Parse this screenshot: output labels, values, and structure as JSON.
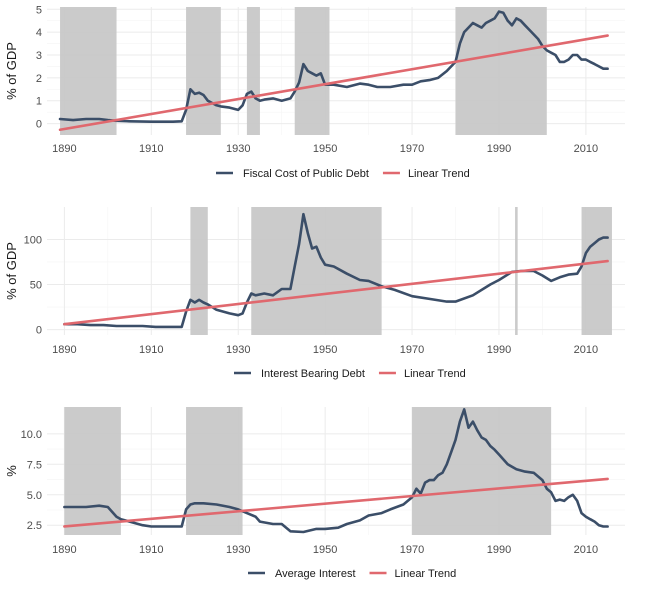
{
  "colors": {
    "series": "#3b4e68",
    "trend": "#e0686e",
    "shade": "#c8c8c8"
  },
  "chart_data": [
    {
      "type": "line",
      "name": "fiscal-cost",
      "ylabel": "% of GDP",
      "xlim": [
        1886,
        2019
      ],
      "ylim": [
        -0.5,
        5.1
      ],
      "xticks": [
        1890,
        1910,
        1930,
        1950,
        1970,
        1990,
        2010
      ],
      "yticks": [
        0,
        1,
        2,
        3,
        4,
        5
      ],
      "ytick_labels": [
        "0",
        "1",
        "2",
        "3",
        "4",
        "5"
      ],
      "shaded_periods": [
        [
          1889,
          1902
        ],
        [
          1918,
          1926
        ],
        [
          1932,
          1935
        ],
        [
          1943,
          1951
        ],
        [
          1980,
          2001
        ]
      ],
      "series": {
        "name": "Fiscal Cost of Public Debt",
        "x": [
          1889,
          1892,
          1895,
          1898,
          1900,
          1902,
          1905,
          1910,
          1915,
          1917,
          1918,
          1919,
          1920,
          1921,
          1922,
          1923,
          1924,
          1925,
          1926,
          1928,
          1930,
          1931,
          1932,
          1933,
          1934,
          1935,
          1936,
          1938,
          1940,
          1942,
          1943,
          1944,
          1945,
          1946,
          1947,
          1948,
          1949,
          1950,
          1952,
          1955,
          1958,
          1960,
          1962,
          1965,
          1968,
          1970,
          1972,
          1974,
          1976,
          1978,
          1979,
          1980,
          1981,
          1982,
          1983,
          1984,
          1985,
          1986,
          1987,
          1988,
          1989,
          1990,
          1991,
          1992,
          1993,
          1994,
          1995,
          1996,
          1997,
          1998,
          1999,
          2000,
          2001,
          2002,
          2003,
          2004,
          2005,
          2006,
          2007,
          2008,
          2009,
          2010,
          2011,
          2012,
          2013,
          2014,
          2015
        ],
        "y": [
          0.2,
          0.15,
          0.2,
          0.2,
          0.15,
          0.12,
          0.1,
          0.08,
          0.08,
          0.1,
          0.6,
          1.5,
          1.3,
          1.35,
          1.25,
          1.0,
          0.9,
          0.8,
          0.75,
          0.7,
          0.6,
          0.8,
          1.3,
          1.4,
          1.1,
          1.0,
          1.05,
          1.1,
          1.0,
          1.1,
          1.4,
          1.8,
          2.6,
          2.3,
          2.2,
          2.1,
          2.2,
          1.7,
          1.7,
          1.6,
          1.75,
          1.7,
          1.6,
          1.6,
          1.7,
          1.7,
          1.85,
          1.9,
          2.0,
          2.3,
          2.5,
          2.7,
          3.5,
          4.0,
          4.2,
          4.4,
          4.3,
          4.2,
          4.4,
          4.5,
          4.6,
          4.9,
          4.85,
          4.5,
          4.3,
          4.6,
          4.5,
          4.3,
          4.1,
          3.9,
          3.7,
          3.4,
          3.2,
          3.1,
          3.0,
          2.7,
          2.7,
          2.8,
          3.0,
          3.0,
          2.8,
          2.8,
          2.7,
          2.6,
          2.5,
          2.4,
          2.4
        ]
      },
      "trend": {
        "name": "Linear Trend",
        "x": [
          1889,
          2015
        ],
        "y": [
          -0.27,
          3.85
        ]
      }
    },
    {
      "type": "line",
      "name": "interest-bearing-debt",
      "ylabel": "% of GDP",
      "xlim": [
        1886,
        2019
      ],
      "ylim": [
        -6,
        136
      ],
      "xticks": [
        1890,
        1910,
        1930,
        1950,
        1970,
        1990,
        2010
      ],
      "yticks": [
        0,
        50,
        100
      ],
      "ytick_labels": [
        "0",
        "50",
        "100"
      ],
      "shaded_periods": [
        [
          1919,
          1923
        ],
        [
          1933,
          1963
        ],
        [
          1993.7,
          1994.3
        ],
        [
          2009,
          2016
        ]
      ],
      "series": {
        "name": "Interest Bearing Debt",
        "x": [
          1890,
          1893,
          1896,
          1899,
          1902,
          1905,
          1908,
          1911,
          1914,
          1917,
          1918,
          1919,
          1920,
          1921,
          1922,
          1923,
          1925,
          1928,
          1930,
          1931,
          1932,
          1933,
          1934,
          1936,
          1938,
          1940,
          1942,
          1943,
          1944,
          1945,
          1946,
          1947,
          1948,
          1949,
          1950,
          1952,
          1955,
          1958,
          1960,
          1963,
          1966,
          1970,
          1974,
          1978,
          1980,
          1984,
          1988,
          1990,
          1993,
          1995,
          1998,
          2000,
          2002,
          2004,
          2006,
          2008,
          2009,
          2010,
          2011,
          2012,
          2013,
          2014,
          2015
        ],
        "y": [
          6,
          6,
          5,
          5,
          4,
          4,
          4,
          3,
          3,
          3,
          20,
          33,
          30,
          33,
          30,
          28,
          22,
          18,
          16,
          18,
          30,
          40,
          38,
          40,
          38,
          45,
          45,
          70,
          95,
          128,
          107,
          90,
          92,
          80,
          72,
          70,
          62,
          55,
          54,
          48,
          44,
          37,
          34,
          31,
          31,
          38,
          50,
          55,
          64,
          65,
          65,
          60,
          54,
          58,
          61,
          62,
          70,
          85,
          92,
          96,
          100,
          102,
          102
        ]
      },
      "trend": {
        "name": "Linear Trend",
        "x": [
          1890,
          2015
        ],
        "y": [
          6,
          76
        ]
      }
    },
    {
      "type": "line",
      "name": "average-interest",
      "ylabel": "%",
      "xlim": [
        1886,
        2019
      ],
      "ylim": [
        1.7,
        12.2
      ],
      "xticks": [
        1890,
        1910,
        1930,
        1950,
        1970,
        1990,
        2010
      ],
      "yticks": [
        2.5,
        5.0,
        7.5,
        10.0
      ],
      "ytick_labels": [
        "2.5",
        "5.0",
        "7.5",
        "10.0"
      ],
      "shaded_periods": [
        [
          1890,
          1903
        ],
        [
          1918,
          1931
        ],
        [
          1970,
          2002
        ]
      ],
      "series": {
        "name": "Average Interest",
        "x": [
          1890,
          1892,
          1895,
          1898,
          1900,
          1902,
          1903,
          1905,
          1908,
          1910,
          1915,
          1917,
          1918,
          1919,
          1920,
          1922,
          1925,
          1928,
          1930,
          1932,
          1934,
          1935,
          1938,
          1940,
          1942,
          1945,
          1948,
          1950,
          1953,
          1955,
          1958,
          1960,
          1963,
          1965,
          1968,
          1970,
          1971,
          1972,
          1973,
          1974,
          1975,
          1976,
          1977,
          1978,
          1979,
          1980,
          1981,
          1982,
          1983,
          1984,
          1985,
          1986,
          1987,
          1988,
          1989,
          1990,
          1992,
          1994,
          1996,
          1998,
          2000,
          2001,
          2002,
          2003,
          2004,
          2005,
          2006,
          2007,
          2008,
          2009,
          2010,
          2011,
          2012,
          2013,
          2014,
          2015
        ],
        "y": [
          4.0,
          4.0,
          4.0,
          4.1,
          4.0,
          3.2,
          3.0,
          2.8,
          2.5,
          2.4,
          2.4,
          2.4,
          3.8,
          4.2,
          4.3,
          4.3,
          4.2,
          4.0,
          3.8,
          3.5,
          3.2,
          2.8,
          2.6,
          2.6,
          2.0,
          1.95,
          2.2,
          2.2,
          2.3,
          2.6,
          2.9,
          3.3,
          3.5,
          3.8,
          4.2,
          4.8,
          5.5,
          5.1,
          6.0,
          6.2,
          6.2,
          6.6,
          6.8,
          7.5,
          8.5,
          9.5,
          11.0,
          12.0,
          10.5,
          11.0,
          10.3,
          9.7,
          9.5,
          9.0,
          8.7,
          8.3,
          7.5,
          7.1,
          6.9,
          6.8,
          6.2,
          5.5,
          5.2,
          4.5,
          4.6,
          4.5,
          4.8,
          5.0,
          4.5,
          3.5,
          3.2,
          3.0,
          2.8,
          2.5,
          2.4,
          2.4
        ]
      },
      "trend": {
        "name": "Linear Trend",
        "x": [
          1890,
          2015
        ],
        "y": [
          2.4,
          6.3
        ]
      }
    }
  ]
}
